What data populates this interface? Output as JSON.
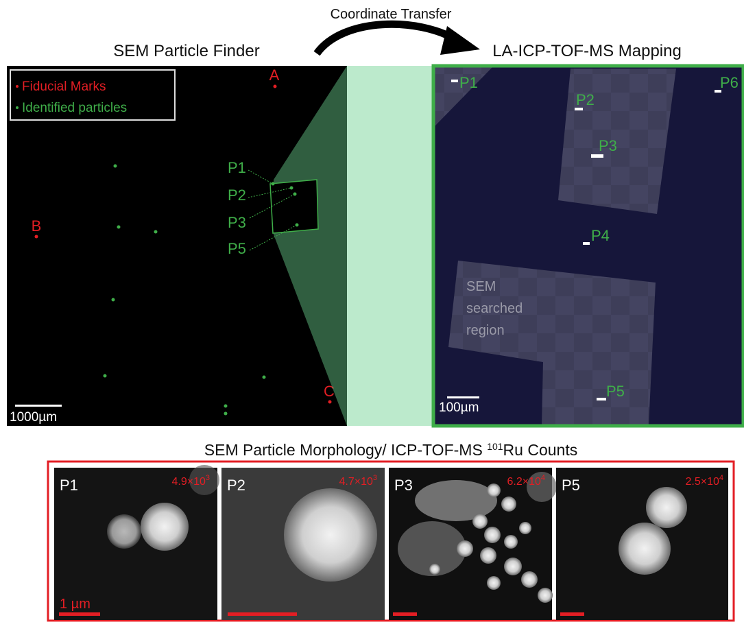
{
  "transfer_label": "Coordinate Transfer",
  "sem": {
    "title": "SEM Particle Finder",
    "legend": {
      "fiducial": "Fiducial Marks",
      "identified": "Identified particles"
    },
    "fiducials": [
      "A",
      "B",
      "C"
    ],
    "callouts": [
      "P1",
      "P2",
      "P3",
      "P5"
    ],
    "scale": "1000µm"
  },
  "la": {
    "title": "LA-ICP-TOF-MS Mapping",
    "particles": [
      "P1",
      "P2",
      "P3",
      "P4",
      "P5",
      "P6"
    ],
    "region_label": [
      "SEM",
      "searched",
      "region"
    ],
    "scale": "100µm"
  },
  "morph": {
    "title_pre": "SEM Particle Morphology/ ICP-TOF-MS ",
    "title_sup": "101",
    "title_post": "Ru Counts",
    "scale": "1 µm",
    "panels": [
      {
        "label": "P1",
        "mant": "4.9×10",
        "exp": "3"
      },
      {
        "label": "P2",
        "mant": "4.7×10",
        "exp": "3"
      },
      {
        "label": "P3",
        "mant": "6.2×10",
        "exp": "4"
      },
      {
        "label": "P5",
        "mant": "2.5×10",
        "exp": "4"
      }
    ]
  },
  "colors": {
    "green": "#3fae49",
    "red": "#e31e24",
    "navy": "#16163a"
  }
}
